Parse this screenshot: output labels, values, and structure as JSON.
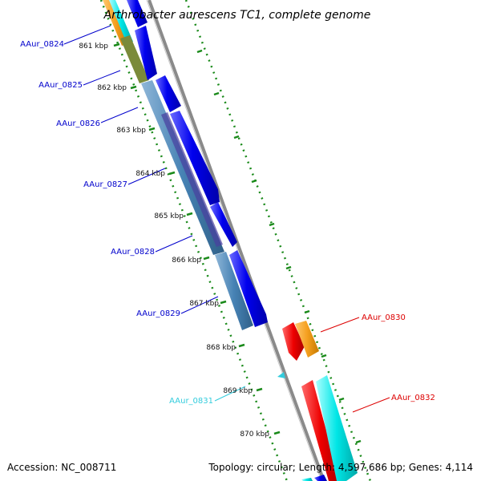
{
  "title": "Arthrobacter aurescens TC1, complete genome",
  "footer": {
    "accession": "Accession: NC_008711",
    "topology": "Topology: circular; Length: 4,597,686 bp; Genes: 4,114"
  },
  "ticks": [
    "861 kbp",
    "862 kbp",
    "863 kbp",
    "864 kbp",
    "865 kbp",
    "866 kbp",
    "867 kbp",
    "868 kbp",
    "869 kbp",
    "870 kbp"
  ],
  "gene_labels": {
    "g0824": "AAur_0824",
    "g0825": "AAur_0825",
    "g0826": "AAur_0826",
    "g0827": "AAur_0827",
    "g0828": "AAur_0828",
    "g0829": "AAur_0829",
    "g0830": "AAur_0830",
    "g0831": "AAur_0831",
    "g0832": "AAur_0832"
  },
  "colors": {
    "forward_label": "#0000cc",
    "reverse_label": "#dd0000",
    "rna_label": "#33ccdd",
    "forward_cds": "#0000ee",
    "reverse_cds": "#ee0000",
    "steelblue_feature": "#4682b4",
    "orange_feature": "#f5a020",
    "cyan_feature": "#00e6e6",
    "backbone": "#8a8a8a",
    "tick_dots": "#1a8a1a"
  }
}
